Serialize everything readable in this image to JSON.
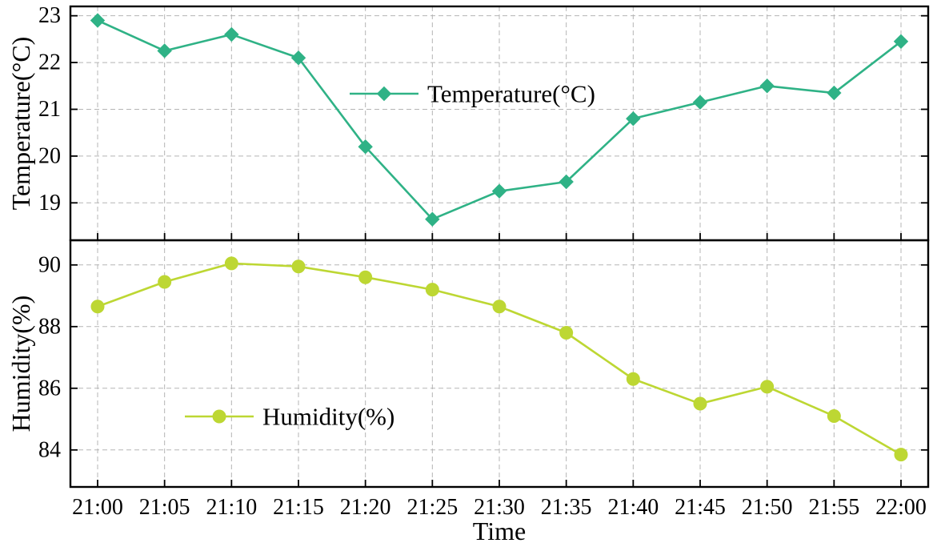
{
  "chart_data": {
    "type": "line",
    "x_categories": [
      "21:00",
      "21:05",
      "21:10",
      "21:15",
      "21:20",
      "21:25",
      "21:30",
      "21:35",
      "21:40",
      "21:45",
      "21:50",
      "21:55",
      "22:00"
    ],
    "xlabel": "Time",
    "grid": "dashed",
    "legend_position": "inside",
    "panels": [
      {
        "name": "temperature",
        "ylabel": "Temperature(°C)",
        "legend_label": "Temperature(°C)",
        "color": "#2fb286",
        "marker": "diamond",
        "ylim": [
          18.2,
          23.2
        ],
        "yticks": [
          19,
          20,
          21,
          22,
          23
        ],
        "values": [
          22.9,
          22.25,
          22.6,
          22.1,
          20.2,
          18.65,
          19.25,
          19.45,
          20.8,
          21.15,
          21.5,
          21.35,
          22.45
        ]
      },
      {
        "name": "humidity",
        "ylabel": "Humidity(%)",
        "legend_label": "Humidity(%)",
        "color": "#bdd733",
        "marker": "circle",
        "ylim": [
          82.8,
          90.8
        ],
        "yticks": [
          84,
          86,
          88,
          90
        ],
        "values": [
          88.65,
          89.45,
          90.05,
          89.95,
          89.6,
          89.2,
          88.65,
          87.8,
          86.3,
          85.5,
          86.05,
          85.1,
          83.85
        ]
      }
    ]
  }
}
